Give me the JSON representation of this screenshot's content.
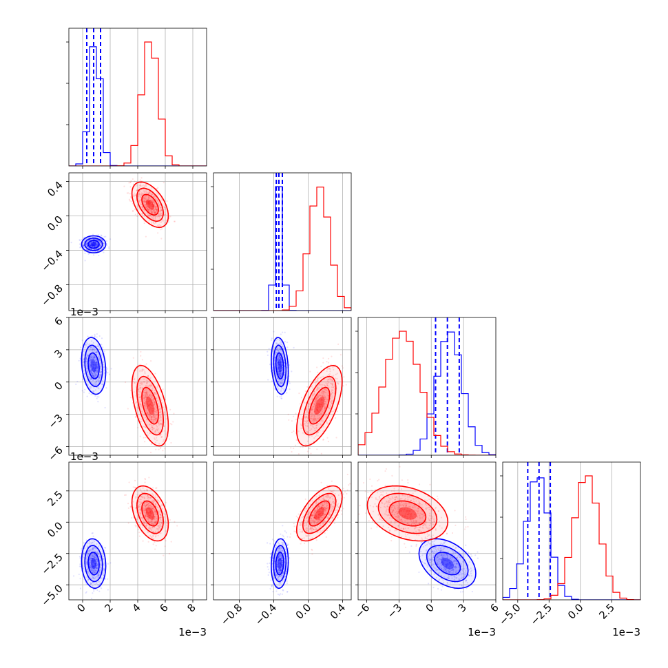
{
  "chart_data": {
    "type": "corner",
    "description_free": true,
    "params": [
      {
        "id": "p0",
        "range": [
          -0.001,
          0.009
        ],
        "scale_label": "1e−3",
        "ticks": [
          0,
          0.002,
          0.004,
          0.006,
          0.008
        ],
        "tick_labels": [
          "0",
          "2",
          "4",
          "6",
          "8"
        ]
      },
      {
        "id": "p1",
        "range": [
          -1.1,
          0.5
        ],
        "scale_label": "",
        "ticks": [
          -0.8,
          -0.4,
          0.0,
          0.4
        ],
        "tick_labels": [
          "−0.8",
          "−0.4",
          "0.0",
          "0.4"
        ]
      },
      {
        "id": "p2",
        "range": [
          -0.0068,
          0.006
        ],
        "scale_label": "1e−3",
        "ticks": [
          -0.006,
          -0.003,
          0,
          0.003,
          0.006
        ],
        "tick_labels": [
          "−6",
          "−3",
          "0",
          "3",
          "6"
        ]
      },
      {
        "id": "p3",
        "range": [
          -0.0062,
          0.0048
        ],
        "scale_label": "1e−3",
        "ticks": [
          -0.005,
          -0.0025,
          0,
          0.0025
        ],
        "tick_labels": [
          "−5.0",
          "−2.5",
          "0.0",
          "2.5"
        ]
      }
    ],
    "series": [
      {
        "color": "#0000ff",
        "mean": [
          0.0008,
          -0.33,
          0.0015,
          -0.0033
        ],
        "sd": [
          0.0004,
          0.045,
          0.0012,
          0.0009
        ],
        "quantiles": [
          [
            0.0003,
            0.0008,
            0.0013
          ],
          [
            -0.37,
            -0.34,
            -0.3
          ],
          [
            0.0004,
            0.0015,
            0.0026
          ],
          [
            -0.0042,
            -0.0033,
            -0.0024
          ]
        ],
        "hist_peak": [
          0.0009,
          -0.34,
          0.0017,
          -0.0034
        ]
      },
      {
        "color": "#ff0000",
        "mean": [
          0.0049,
          0.13,
          -0.0022,
          0.0007
        ],
        "sd": [
          0.0006,
          0.12,
          0.0017,
          0.001
        ],
        "hist_peak": [
          0.0049,
          0.13,
          -0.0027,
          0.0005
        ]
      }
    ],
    "correlations": {
      "blue": {
        "p0p1": 0.0,
        "p0p2": -0.2,
        "p1p2": -0.2,
        "p0p3": -0.1,
        "p1p3": 0.1,
        "p2p3": -0.4
      },
      "red": {
        "p0p1": -0.5,
        "p0p2": -0.5,
        "p1p2": 0.6,
        "p0p3": -0.4,
        "p1p3": 0.6,
        "p2p3": -0.3
      }
    },
    "grid": true
  }
}
